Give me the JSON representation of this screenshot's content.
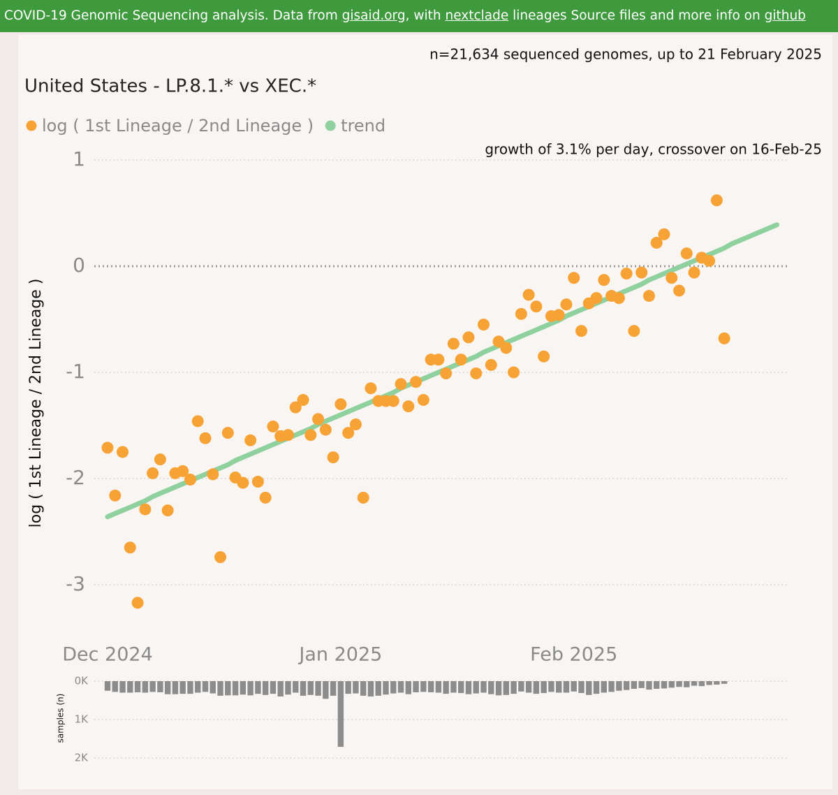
{
  "header": {
    "segments": [
      {
        "text": "COVID-19 Genomic Sequencing analysis. Data from "
      },
      {
        "text": "gisaid.org",
        "link": true
      },
      {
        "text": ", with "
      },
      {
        "text": "nextclade",
        "link": true
      },
      {
        "text": " lineages Source files and more info on "
      },
      {
        "text": "github",
        "link": true
      }
    ]
  },
  "chart_data": [
    {
      "type": "scatter",
      "title": "United States - LP.8.1.* vs XEC.*",
      "annotations": [
        "n=21,634 sequenced genomes, up to 21 February 2025",
        "growth of 3.1% per day, crossover on 16-Feb-25"
      ],
      "ylabel": "log ( 1st Lineage / 2nd Lineage )",
      "categories": [
        "Dec 2024",
        null,
        null,
        null,
        null,
        null,
        null,
        null,
        null,
        null,
        null,
        null,
        null,
        null,
        null,
        null,
        null,
        null,
        null,
        null,
        null,
        null,
        null,
        null,
        null,
        null,
        null,
        null,
        null,
        null,
        null,
        "Jan 2025",
        null,
        null,
        null,
        null,
        null,
        null,
        null,
        null,
        null,
        null,
        null,
        null,
        null,
        null,
        null,
        null,
        null,
        null,
        null,
        null,
        null,
        null,
        null,
        null,
        null,
        null,
        null,
        null,
        null,
        null,
        "Feb 2025",
        null,
        null,
        null,
        null,
        null,
        null,
        null,
        null,
        null,
        null,
        null,
        null,
        null,
        null,
        null,
        null,
        null,
        null,
        null,
        null,
        null,
        null,
        null,
        null,
        null,
        null,
        null
      ],
      "series": [
        {
          "name": "log ( 1st Lineage / 2nd Lineage )",
          "color": "#f7a234",
          "values": [
            -1.71,
            -2.16,
            -1.75,
            -2.65,
            -3.17,
            -2.29,
            -1.95,
            -1.82,
            -2.3,
            -1.95,
            -1.93,
            -2.01,
            -1.46,
            -1.62,
            -1.96,
            -2.74,
            -1.57,
            -1.99,
            -2.04,
            -1.64,
            -2.03,
            -2.18,
            -1.51,
            -1.6,
            -1.59,
            -1.33,
            -1.26,
            -1.59,
            -1.44,
            -1.54,
            -1.8,
            -1.3,
            -1.57,
            -1.49,
            -2.18,
            -1.15,
            -1.27,
            -1.27,
            -1.27,
            -1.11,
            -1.32,
            -1.09,
            -1.26,
            -0.88,
            -0.88,
            -1.01,
            -0.73,
            -0.88,
            -0.67,
            -1.01,
            -0.55,
            -0.93,
            -0.71,
            -0.77,
            -1.0,
            -0.45,
            -0.27,
            -0.38,
            -0.85,
            -0.47,
            -0.46,
            -0.36,
            -0.11,
            -0.61,
            -0.35,
            -0.3,
            -0.13,
            -0.28,
            -0.3,
            -0.07,
            -0.61,
            -0.06,
            -0.28,
            0.22,
            0.3,
            -0.11,
            -0.23,
            0.12,
            -0.06,
            0.08,
            0.05,
            0.62,
            -0.68,
            null,
            null,
            null,
            null,
            null,
            null,
            null
          ]
        },
        {
          "name": "trend",
          "color": "#8fd19e",
          "type": "line",
          "values": [
            -2.36,
            -2.33,
            -2.3,
            -2.27,
            -2.24,
            -2.21,
            -2.17,
            -2.14,
            -2.11,
            -2.08,
            -2.05,
            -2.02,
            -1.99,
            -1.96,
            -1.93,
            -1.9,
            -1.87,
            -1.83,
            -1.8,
            -1.77,
            -1.74,
            -1.71,
            -1.68,
            -1.65,
            -1.62,
            -1.59,
            -1.56,
            -1.53,
            -1.49,
            -1.46,
            -1.43,
            -1.4,
            -1.37,
            -1.34,
            -1.31,
            -1.28,
            -1.25,
            -1.22,
            -1.19,
            -1.15,
            -1.12,
            -1.09,
            -1.06,
            -1.03,
            -1.0,
            -0.97,
            -0.94,
            -0.91,
            -0.88,
            -0.85,
            -0.81,
            -0.78,
            -0.75,
            -0.72,
            -0.69,
            -0.66,
            -0.63,
            -0.6,
            -0.57,
            -0.54,
            -0.51,
            -0.47,
            -0.44,
            -0.41,
            -0.38,
            -0.35,
            -0.32,
            -0.29,
            -0.26,
            -0.23,
            -0.2,
            -0.17,
            -0.13,
            -0.1,
            -0.07,
            -0.04,
            -0.01,
            0.02,
            0.05,
            0.08,
            0.11,
            0.14,
            0.17,
            0.21,
            0.24,
            0.27,
            0.3,
            0.33,
            0.36,
            0.39
          ]
        }
      ],
      "ylim": [
        -3.5,
        1.1
      ],
      "yticks": [
        -3,
        -2,
        -1,
        0,
        1
      ],
      "grid": true,
      "zero_line": true,
      "legend": "top-left"
    },
    {
      "type": "bar",
      "ylabel": "samples (n)",
      "color": "#8c8c8c",
      "values": [
        250,
        280,
        300,
        300,
        290,
        300,
        280,
        290,
        340,
        340,
        330,
        330,
        300,
        280,
        320,
        380,
        370,
        370,
        350,
        370,
        330,
        360,
        330,
        400,
        350,
        300,
        380,
        360,
        380,
        460,
        380,
        1710,
        330,
        320,
        380,
        400,
        380,
        350,
        320,
        300,
        340,
        290,
        280,
        290,
        300,
        330,
        300,
        310,
        340,
        320,
        300,
        340,
        370,
        360,
        330,
        270,
        300,
        330,
        310,
        280,
        300,
        300,
        270,
        310,
        360,
        330,
        300,
        280,
        250,
        230,
        200,
        180,
        220,
        200,
        190,
        170,
        150,
        160,
        120,
        130,
        100,
        90,
        70,
        null,
        null,
        null,
        null,
        null,
        null,
        null
      ],
      "ylim": [
        0,
        2000
      ],
      "y_reversed": true,
      "yticks": [
        {
          "value": 0,
          "label": "0K"
        },
        {
          "value": 1000,
          "label": "1K"
        },
        {
          "value": 2000,
          "label": "2K"
        }
      ],
      "grid": true
    }
  ]
}
